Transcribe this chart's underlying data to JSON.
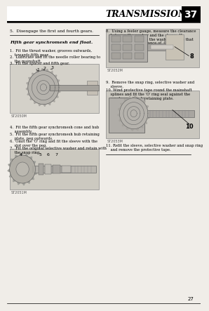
{
  "page_bg": "#f0ede8",
  "title": "TRANSMISSION",
  "page_num": "37",
  "footer_num": "27",
  "text_color": "#000000",
  "left_column": {
    "line1": "5.  Disengage the first and fourth gears.",
    "section_title": "Fifth gear synchromesh end float.",
    "steps_left": [
      "1.  Fit the thrust washer, grooves outwards,\n    towards fifth gear.",
      "2.  Lubricate and fit the needle roller bearing to\n    the mainshaft.",
      "3.  Fit the spacer and fifth gear.",
      "4.  Fit the fifth gear synchromesh cone and hub\n    assembly.",
      "5.  Fit the fifth gear synchromesh hub retaining\n    plate, peg outwards.",
      "6.  Omit the 'O' ring and fit the sleeve with the\n    slot over the peg.",
      "7.  Fit the original selective washer and retain with\n    the snap ring."
    ],
    "img1_label": "ST2050M",
    "img2_label": "ST2051M"
  },
  "right_column": {
    "steps_right": [
      "8.  Using a feeler gauge, measure the clearance\n    between the washer and the sleeve. If\n    necessary exchange the washer for one that\n    will provide  a clearance of  0,075mm\n    (0.003ins.)",
      "9.  Remove the snap ring, selective washer and\n    sleeve.",
      "10. Wind protective tape round the mainshaft\n    splines and fit the 'O' ring seal against the\n    synchromesh hub retaining plate.",
      "11. Refit the sleeve, selective washer and snap ring\n    and remove the protective tape."
    ],
    "img3_label": "ST2052M",
    "img4_label": "ST2053M"
  }
}
